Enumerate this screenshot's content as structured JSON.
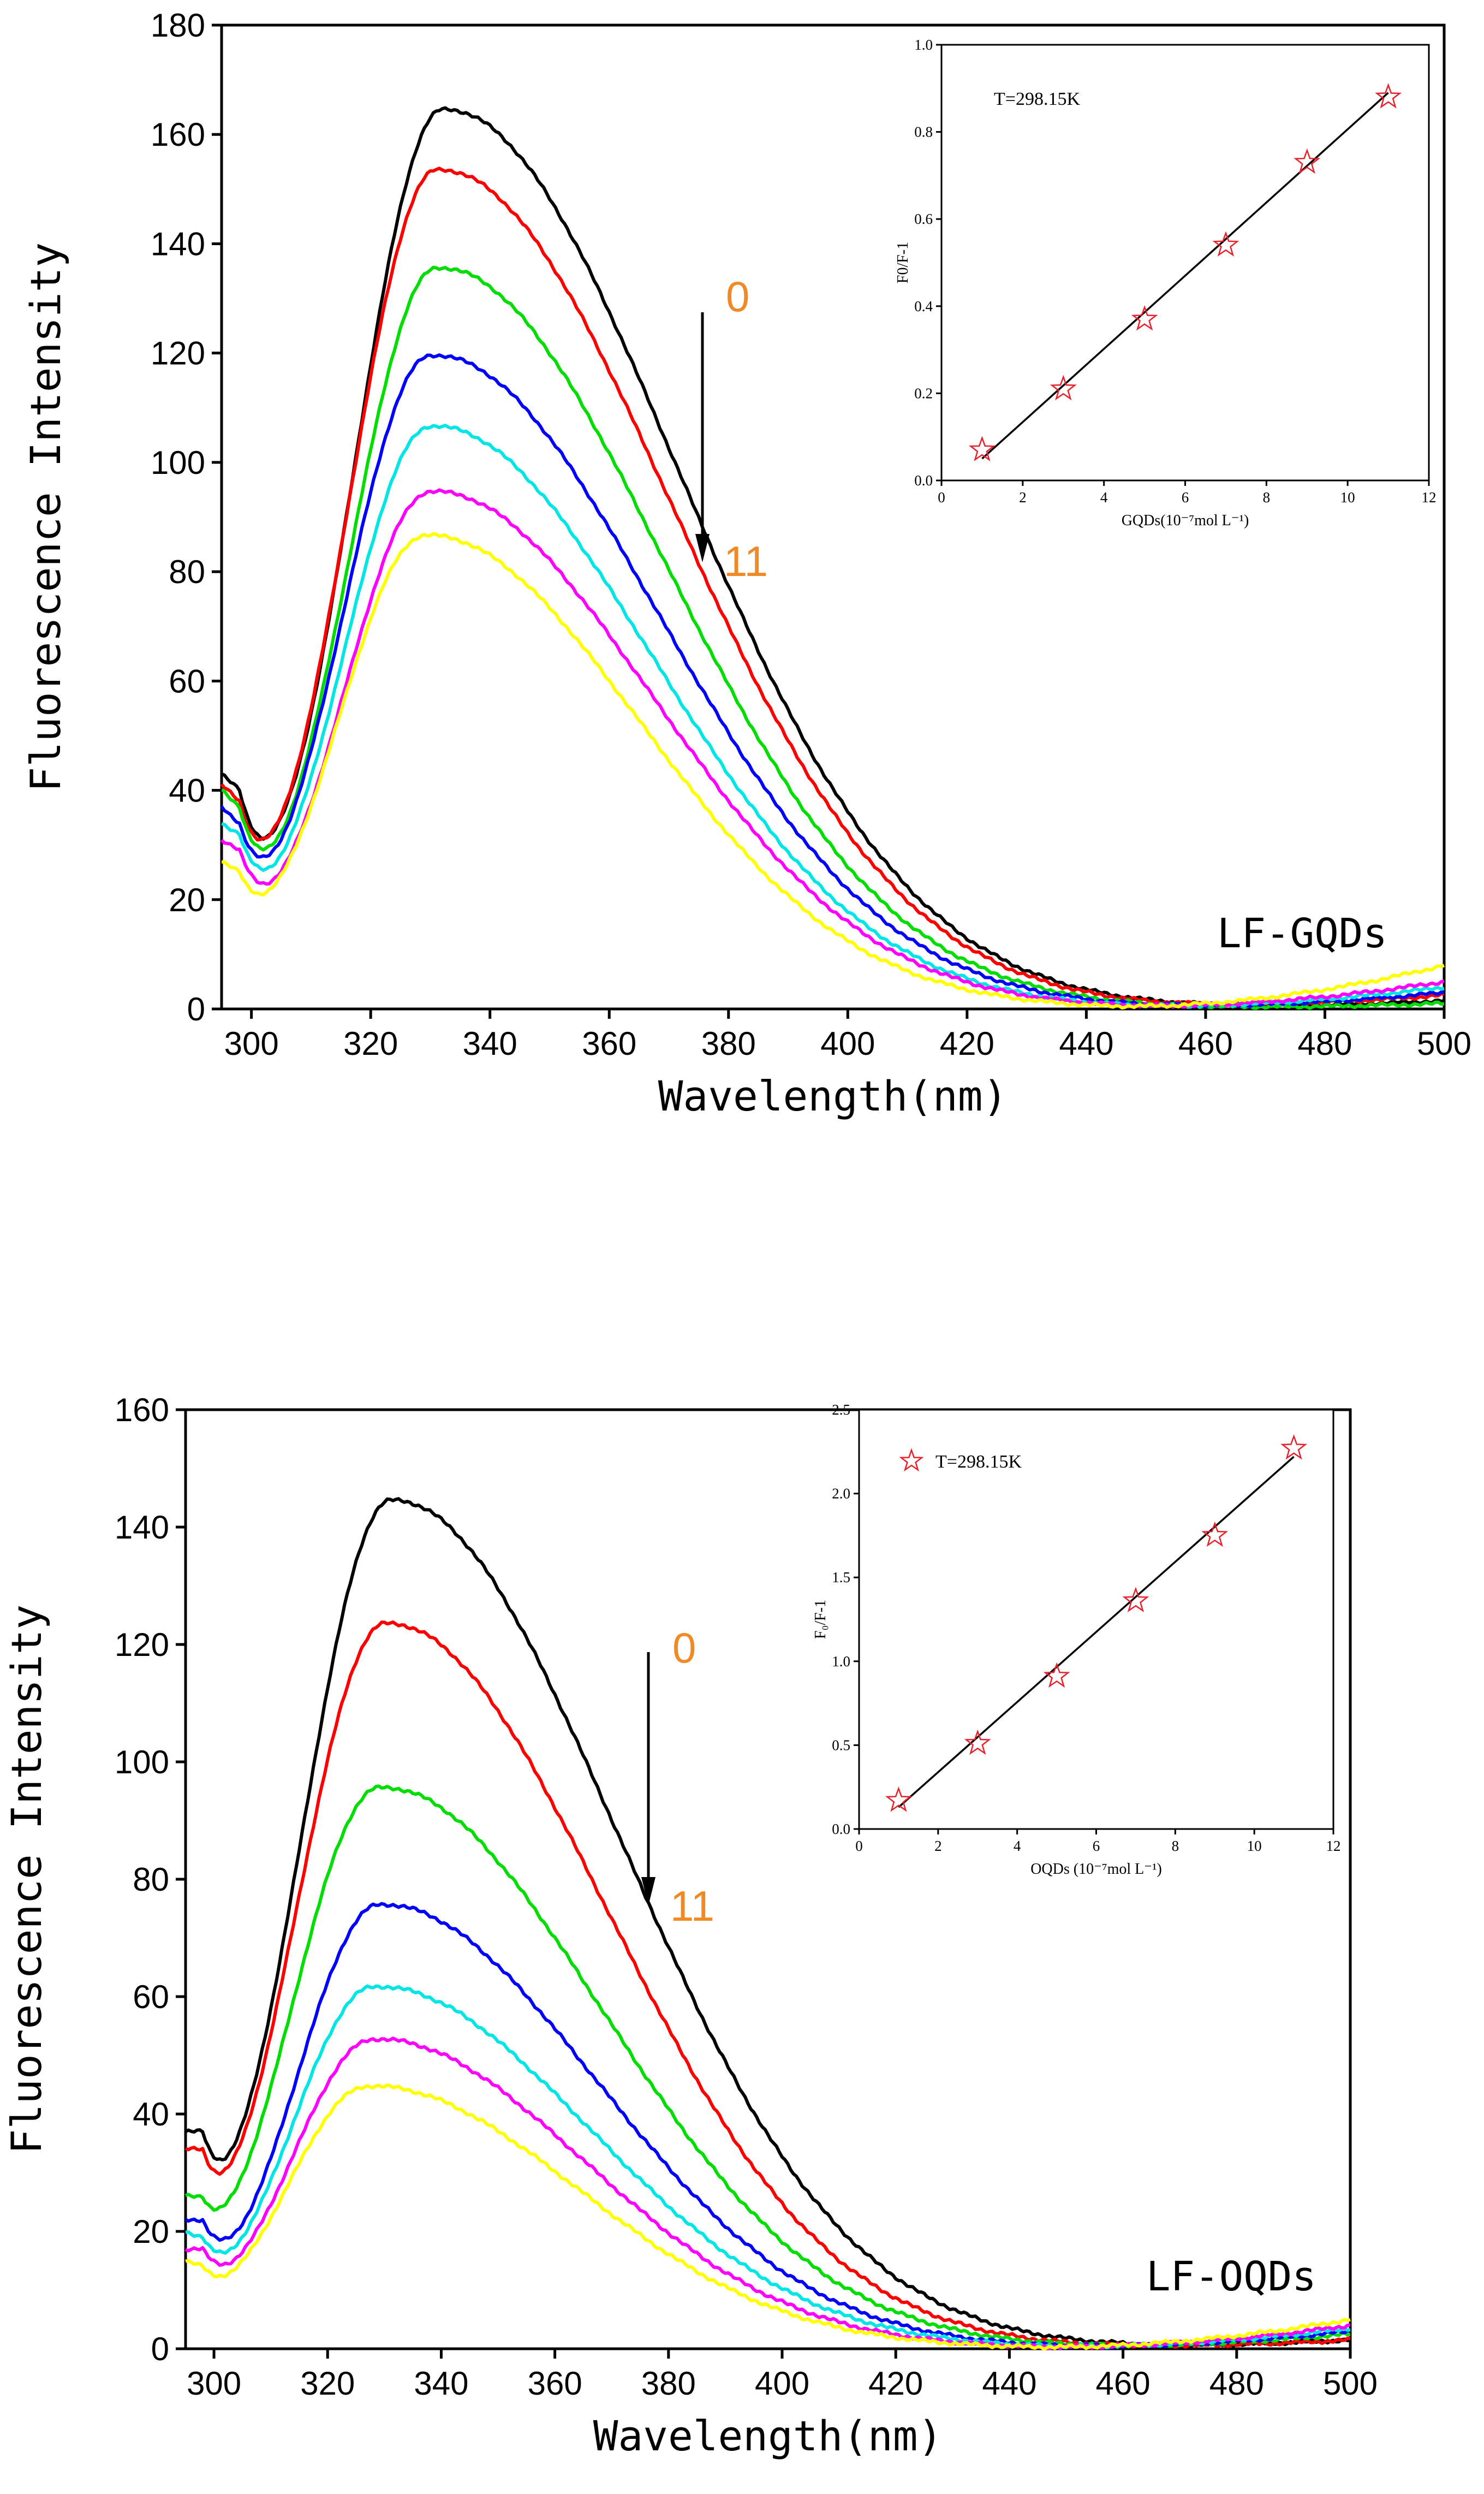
{
  "chart_data": [
    {
      "type": "line",
      "panel_label": "LF-GQDs",
      "xlabel": "Wavelength(nm)",
      "ylabel": "Fluorescence Intensity",
      "xlim": [
        295,
        500
      ],
      "ylim": [
        0,
        180
      ],
      "x_ticks": [
        300,
        320,
        340,
        360,
        380,
        400,
        420,
        440,
        460,
        480,
        500
      ],
      "y_ticks": [
        0,
        20,
        40,
        60,
        80,
        100,
        120,
        140,
        160,
        180
      ],
      "arrow_top_label": "0",
      "arrow_bottom_label": "11",
      "annotation_color": "#f08a24",
      "series": [
        {
          "color": "#000000",
          "start": 43,
          "dip": 40,
          "peak": 165,
          "peak_x": 332,
          "sl": 15,
          "sr": 39,
          "tail": 1.5
        },
        {
          "color": "#ff0000",
          "start": 41,
          "dip": 38,
          "peak": 154,
          "peak_x": 331,
          "sl": 15,
          "sr": 39,
          "tail": 2.5
        },
        {
          "color": "#00dd00",
          "start": 40,
          "dip": 37,
          "peak": 136,
          "peak_x": 331,
          "sl": 15,
          "sr": 38,
          "tail": 1.0
        },
        {
          "color": "#0000ff",
          "start": 37,
          "dip": 34,
          "peak": 120,
          "peak_x": 330,
          "sl": 15,
          "sr": 38,
          "tail": 3.0
        },
        {
          "color": "#00e5e5",
          "start": 34,
          "dip": 32,
          "peak": 107,
          "peak_x": 330,
          "sl": 15,
          "sr": 37,
          "tail": 4.0
        },
        {
          "color": "#ff00ff",
          "start": 31,
          "dip": 29,
          "peak": 95,
          "peak_x": 330,
          "sl": 15,
          "sr": 37,
          "tail": 5.0
        },
        {
          "color": "#ffff00",
          "start": 27,
          "dip": 25,
          "peak": 87,
          "peak_x": 329,
          "sl": 15,
          "sr": 36,
          "tail": 8.0
        }
      ],
      "inset": {
        "xlabel": "GQDs(10⁻⁷mol L⁻¹)",
        "ylabel": "F0/F-1",
        "temperature_label": "T=298.15K",
        "xlim": [
          0,
          12
        ],
        "ylim": [
          0.0,
          1.0
        ],
        "x_ticks": [
          0,
          2,
          4,
          6,
          8,
          10,
          12
        ],
        "y_ticks": [
          0.0,
          0.2,
          0.4,
          0.6,
          0.8,
          1.0
        ],
        "y_tick_decimals": 1,
        "marker_color": "#e8202a",
        "points": {
          "x": [
            1,
            3,
            5,
            7,
            9,
            11
          ],
          "y": [
            0.07,
            0.21,
            0.37,
            0.54,
            0.73,
            0.88
          ]
        },
        "fit": {
          "x": [
            1,
            11
          ],
          "y": [
            0.05,
            0.89
          ]
        }
      }
    },
    {
      "type": "line",
      "panel_label": "LF-OQDs",
      "xlabel": "Wavelength(nm)",
      "ylabel": "Fluorescence Intensity",
      "xlim": [
        295,
        500
      ],
      "ylim": [
        0,
        160
      ],
      "x_ticks": [
        300,
        320,
        340,
        360,
        380,
        400,
        420,
        440,
        460,
        480,
        500
      ],
      "y_ticks": [
        0,
        20,
        40,
        60,
        80,
        100,
        120,
        140,
        160
      ],
      "arrow_top_label": "0",
      "arrow_bottom_label": "11",
      "annotation_color": "#f08a24",
      "series": [
        {
          "color": "#000000",
          "start": 37,
          "dip": 37,
          "peak": 145,
          "peak_x": 331,
          "sl": 16,
          "sr": 40,
          "tail": 1.5
        },
        {
          "color": "#ff0000",
          "start": 34,
          "dip": 34,
          "peak": 124,
          "peak_x": 330,
          "sl": 16,
          "sr": 39,
          "tail": 1.5
        },
        {
          "color": "#00dd00",
          "start": 26,
          "dip": 26,
          "peak": 96,
          "peak_x": 329,
          "sl": 16,
          "sr": 39,
          "tail": 2.5
        },
        {
          "color": "#0000ff",
          "start": 22,
          "dip": 22,
          "peak": 76,
          "peak_x": 329,
          "sl": 15,
          "sr": 38,
          "tail": 3.0
        },
        {
          "color": "#00e5e5",
          "start": 20,
          "dip": 19,
          "peak": 62,
          "peak_x": 328,
          "sl": 15,
          "sr": 38,
          "tail": 3.5
        },
        {
          "color": "#ff00ff",
          "start": 17,
          "dip": 17,
          "peak": 53,
          "peak_x": 328,
          "sl": 15,
          "sr": 37,
          "tail": 4.0
        },
        {
          "color": "#ffff00",
          "start": 15,
          "dip": 14,
          "peak": 45,
          "peak_x": 327,
          "sl": 15,
          "sr": 37,
          "tail": 5.0
        }
      ],
      "inset": {
        "xlabel": "OQDs (10⁻⁷mol L⁻¹)",
        "ylabel": "F₀/F-1",
        "temperature_label": "T=298.15K",
        "xlim": [
          0,
          12
        ],
        "ylim": [
          0.0,
          2.5
        ],
        "x_ticks": [
          0,
          2,
          4,
          6,
          8,
          10,
          12
        ],
        "y_ticks": [
          0.0,
          0.5,
          1.0,
          1.5,
          2.0,
          2.5
        ],
        "y_tick_decimals": 1,
        "marker_color": "#e8202a",
        "points": {
          "x": [
            1,
            3,
            5,
            7,
            9,
            11
          ],
          "y": [
            0.17,
            0.51,
            0.91,
            1.36,
            1.75,
            2.27
          ]
        },
        "fit": {
          "x": [
            1,
            11
          ],
          "y": [
            0.13,
            2.22
          ]
        }
      }
    }
  ]
}
